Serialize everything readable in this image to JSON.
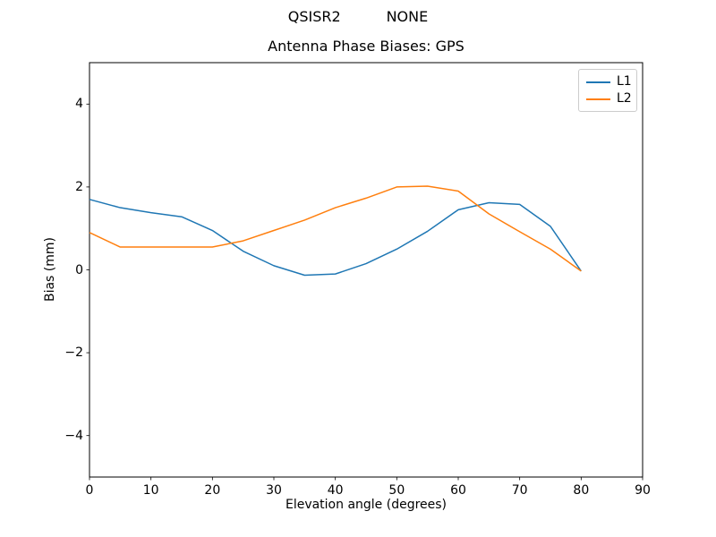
{
  "figure": {
    "suptitle": "QSISR2          NONE",
    "background": "#ffffff"
  },
  "chart_data": {
    "type": "line",
    "title": "Antenna Phase Biases: GPS",
    "xlabel": "Elevation angle (degrees)",
    "ylabel": "Bias (mm)",
    "xlim": [
      0,
      90
    ],
    "ylim": [
      -5,
      5
    ],
    "x_ticks": [
      0,
      10,
      20,
      30,
      40,
      50,
      60,
      70,
      80,
      90
    ],
    "y_ticks": [
      -4,
      -2,
      0,
      2,
      4
    ],
    "y_tick_labels": [
      "−4",
      "−2",
      "0",
      "2",
      "4"
    ],
    "grid": false,
    "legend": {
      "position": "upper right",
      "entries": [
        "L1",
        "L2"
      ]
    },
    "x": [
      0,
      5,
      10,
      15,
      20,
      25,
      30,
      35,
      40,
      45,
      50,
      55,
      60,
      65,
      70,
      75,
      80
    ],
    "series": [
      {
        "name": "L1",
        "color": "#1f77b4",
        "values": [
          1.7,
          1.5,
          1.38,
          1.28,
          0.95,
          0.45,
          0.1,
          -0.13,
          -0.1,
          0.15,
          0.5,
          0.93,
          1.45,
          1.62,
          1.58,
          1.05,
          -0.03
        ]
      },
      {
        "name": "L2",
        "color": "#ff7f0e",
        "values": [
          0.9,
          0.55,
          0.55,
          0.55,
          0.55,
          0.7,
          0.95,
          1.2,
          1.5,
          1.73,
          2.0,
          2.02,
          1.9,
          1.35,
          0.92,
          0.5,
          -0.03
        ]
      }
    ]
  }
}
